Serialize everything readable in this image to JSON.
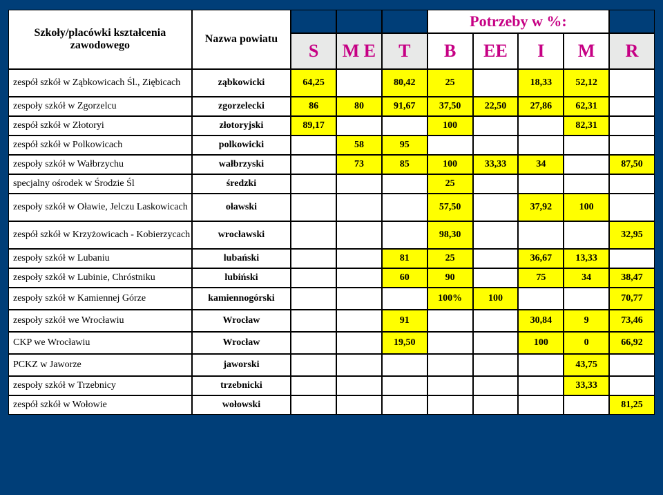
{
  "header": {
    "group_title": "Szkoły/placówki kształcenia zawodowego",
    "powiat_title": "Nazwa powiatu",
    "potrzeby": "Potrzeby w %:",
    "cols": {
      "S": "S",
      "ME": "M E",
      "T": "T",
      "B": "B",
      "EE": "EE",
      "I": "I",
      "M": "M",
      "R": "R"
    }
  },
  "rows": [
    {
      "name": "zespół szkół w Ząbkowicach Śl., Ziębicach",
      "powiat": "ząbkowicki",
      "twoLine": true,
      "S": "64,25",
      "ME": "",
      "T": "80,42",
      "B": "25",
      "EE": "",
      "I": "18,33",
      "M": "52,12",
      "R": ""
    },
    {
      "name": "zespoły szkół w Zgorzelcu",
      "powiat": "zgorzelecki",
      "S": "86",
      "ME": "80",
      "T": "91,67",
      "B": "37,50",
      "EE": "22,50",
      "I": "27,86",
      "M": "62,31",
      "R": ""
    },
    {
      "name": "zespół szkół  w Złotoryi",
      "powiat": "złotoryjski",
      "S": "89,17",
      "ME": "",
      "T": "",
      "B": "100",
      "EE": "",
      "I": "",
      "M": "82,31",
      "R": ""
    },
    {
      "name": "zespół szkół w Polkowicach",
      "powiat": "polkowicki",
      "S": "",
      "ME": "58",
      "T": "95",
      "B": "",
      "EE": "",
      "I": "",
      "M": "",
      "R": ""
    },
    {
      "name": "zespoły szkół w Wałbrzychu",
      "powiat": "wałbrzyski",
      "S": "",
      "ME": "73",
      "T": "85",
      "B": "100",
      "EE": "33,33",
      "I": "34",
      "M": "",
      "R": "87,50"
    },
    {
      "name": "specjalny ośrodek w Środzie Śl",
      "powiat": "średzki",
      "S": "",
      "ME": "",
      "T": "",
      "B": "25",
      "EE": "",
      "I": "",
      "M": "",
      "R": ""
    },
    {
      "name": "zespoły szkół w Oławie, Jelczu Laskowicach",
      "powiat": "oławski",
      "twoLine": true,
      "S": "",
      "ME": "",
      "T": "",
      "B": "57,50",
      "EE": "",
      "I": "37,92",
      "M": "100",
      "R": ""
    },
    {
      "name": "zespół szkół w Krzyżowicach - Kobierzycach",
      "powiat": "wrocławski",
      "twoLine": true,
      "S": "",
      "ME": "",
      "T": "",
      "B": "98,30",
      "EE": "",
      "I": "",
      "M": "",
      "R": "32,95"
    },
    {
      "name": "zespoły szkół w Lubaniu",
      "powiat": "lubański",
      "S": "",
      "ME": "",
      "T": "81",
      "B": "25",
      "EE": "",
      "I": "36,67",
      "M": "13,33",
      "R": ""
    },
    {
      "name": "zespoły szkół w Lubinie, Chróstniku",
      "powiat": "lubiński",
      "S": "",
      "ME": "",
      "T": "60",
      "B": "90",
      "EE": "",
      "I": "75",
      "M": "34",
      "R": "38,47"
    },
    {
      "name": "zespoły szkół w Kamiennej Górze",
      "powiat": "kamiennogórski",
      "S": "",
      "ME": "",
      "T": "",
      "B": "100%",
      "EE": "100",
      "I": "",
      "M": "",
      "R": "70,77"
    },
    {
      "name": "zespoły szkół we Wrocławiu",
      "powiat": "Wrocław",
      "S": "",
      "ME": "",
      "T": "91",
      "B": "",
      "EE": "",
      "I": "30,84",
      "M": "9",
      "R": "73,46"
    },
    {
      "name": "CKP we Wrocławiu",
      "powiat": "Wrocław",
      "S": "",
      "ME": "",
      "T": "19,50",
      "B": "",
      "EE": "",
      "I": "100",
      "M": "0",
      "R": "66,92"
    },
    {
      "name": "PCKZ w Jaworze",
      "powiat": "jaworski",
      "S": "",
      "ME": "",
      "T": "",
      "B": "",
      "EE": "",
      "I": "",
      "M": "43,75",
      "R": ""
    },
    {
      "name": "zespoły szkół w Trzebnicy",
      "powiat": "trzebnicki",
      "S": "",
      "ME": "",
      "T": "",
      "B": "",
      "EE": "",
      "I": "",
      "M": "33,33",
      "R": ""
    },
    {
      "name": "zespół szkół w Wołowie",
      "powiat": "wołowski",
      "S": "",
      "ME": "",
      "T": "",
      "B": "",
      "EE": "",
      "I": "",
      "M": "",
      "R": "81,25"
    }
  ],
  "yellow": {
    "0": [
      "S",
      "T",
      "B",
      "I",
      "M"
    ],
    "1": [
      "S",
      "ME",
      "T",
      "B",
      "EE",
      "I",
      "M"
    ],
    "2": [
      "S",
      "B",
      "M"
    ],
    "3": [
      "ME",
      "T"
    ],
    "4": [
      "ME",
      "T",
      "B",
      "EE",
      "I",
      "R"
    ],
    "5": [
      "B"
    ],
    "6": [
      "B",
      "I",
      "M"
    ],
    "7": [
      "B",
      "R"
    ],
    "8": [
      "T",
      "B",
      "I",
      "M"
    ],
    "9": [
      "T",
      "B",
      "I",
      "M",
      "R"
    ],
    "10": [
      "B",
      "EE",
      "R"
    ],
    "11": [
      "T",
      "I",
      "M",
      "R"
    ],
    "12": [
      "T",
      "I",
      "M",
      "R"
    ],
    "13": [
      "M"
    ],
    "14": [
      "M"
    ],
    "15": [
      "R"
    ]
  },
  "colors": {
    "background": "#003e78",
    "highlight": "#ffff00",
    "header_gray": "#e8e9e8",
    "magenta": "#c60084"
  }
}
